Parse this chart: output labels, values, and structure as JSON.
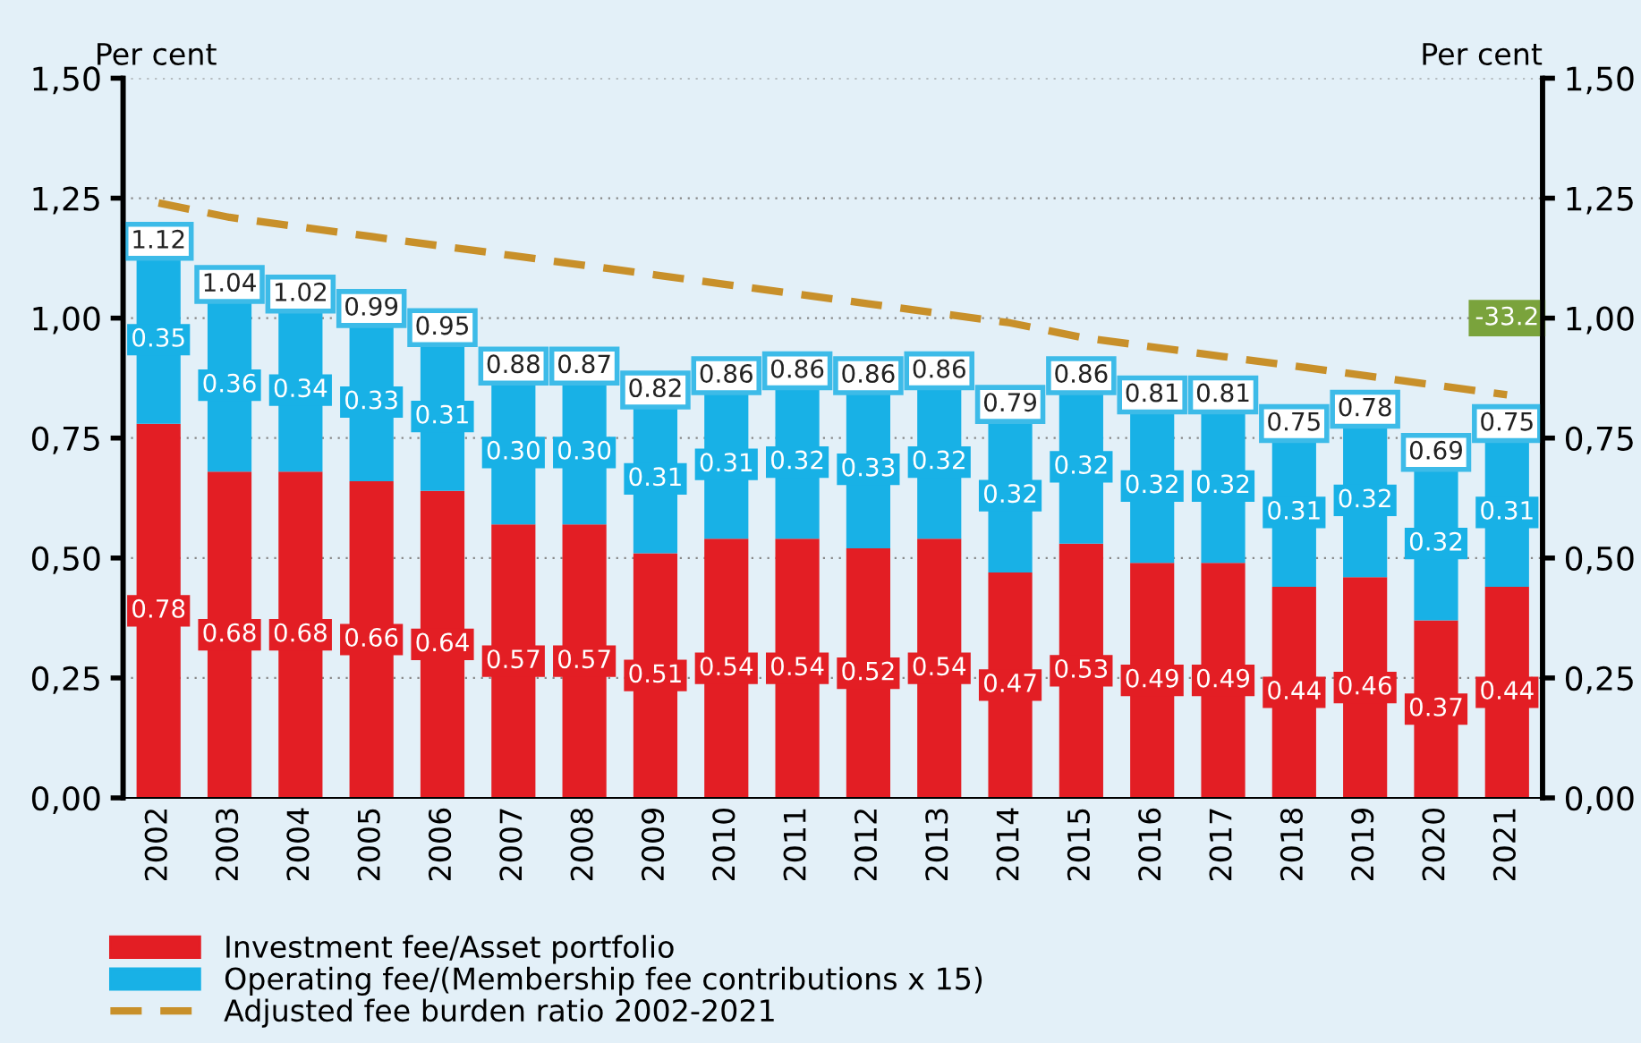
{
  "chart_data": {
    "type": "bar",
    "stacked": true,
    "categories": [
      "2002",
      "2003",
      "2004",
      "2005",
      "2006",
      "2007",
      "2008",
      "2009",
      "2010",
      "2011",
      "2012",
      "2013",
      "2014",
      "2015",
      "2016",
      "2017",
      "2018",
      "2019",
      "2020",
      "2021"
    ],
    "series": [
      {
        "name": "Investment fee/Asset portfolio",
        "color": "#e31e24",
        "values": [
          0.78,
          0.68,
          0.68,
          0.66,
          0.64,
          0.57,
          0.57,
          0.51,
          0.54,
          0.54,
          0.52,
          0.54,
          0.47,
          0.53,
          0.49,
          0.49,
          0.44,
          0.46,
          0.37,
          0.44
        ],
        "value_labels": [
          "0.78",
          "0.68",
          "0.68",
          "0.66",
          "0.64",
          "0.57",
          "0.57",
          "0.51",
          "0.54",
          "0.54",
          "0.52",
          "0.54",
          "0.47",
          "0.53",
          "0.49",
          "0.49",
          "0.44",
          "0.46",
          "0.37",
          "0.44"
        ]
      },
      {
        "name": "Operating fee/(Membership fee contributions x 15)",
        "color": "#18b1e6",
        "values": [
          0.35,
          0.36,
          0.34,
          0.33,
          0.31,
          0.3,
          0.3,
          0.31,
          0.31,
          0.32,
          0.33,
          0.32,
          0.32,
          0.32,
          0.32,
          0.32,
          0.31,
          0.32,
          0.32,
          0.31
        ],
        "value_labels": [
          "0.35",
          "0.36",
          "0.34",
          "0.33",
          "0.31",
          "0.30",
          "0.30",
          "0.31",
          "0.31",
          "0.32",
          "0.33",
          "0.32",
          "0.32",
          "0.32",
          "0.32",
          "0.32",
          "0.31",
          "0.32",
          "0.32",
          "0.31"
        ]
      },
      {
        "name": "Adjusted fee burden ratio 2002-2021",
        "type": "line",
        "line_style": "dashed",
        "color": "#c8902a",
        "values": [
          1.24,
          1.21,
          1.19,
          1.17,
          1.15,
          1.13,
          1.11,
          1.09,
          1.07,
          1.05,
          1.03,
          1.01,
          0.99,
          0.96,
          0.94,
          0.92,
          0.9,
          0.88,
          0.86,
          0.84
        ]
      }
    ],
    "totals": [
      "1.12",
      "1.04",
      "1.02",
      "0.99",
      "0.95",
      "0.88",
      "0.87",
      "0.82",
      "0.86",
      "0.86",
      "0.86",
      "0.86",
      "0.79",
      "0.86",
      "0.81",
      "0.81",
      "0.75",
      "0.78",
      "0.69",
      "0.75"
    ],
    "ylabel": "Per cent",
    "y2label": "Per cent",
    "ylim": [
      0,
      1.5
    ],
    "y2lim": [
      0,
      1.5
    ],
    "yticks": [
      {
        "value": 0,
        "label": "0,00"
      },
      {
        "value": 0.25,
        "label": "0,25"
      },
      {
        "value": 0.5,
        "label": "0,50"
      },
      {
        "value": 0.75,
        "label": "0,75"
      },
      {
        "value": 1.0,
        "label": "1,00"
      },
      {
        "value": 1.25,
        "label": "1,25"
      },
      {
        "value": 1.5,
        "label": "1,50"
      }
    ],
    "y2ticks": [
      {
        "value": 0,
        "label": "0,00"
      },
      {
        "value": 0.25,
        "label": "0,25"
      },
      {
        "value": 0.5,
        "label": "0,50"
      },
      {
        "value": 0.75,
        "label": "0,75"
      },
      {
        "value": 1.0,
        "label": "1,00"
      },
      {
        "value": 1.25,
        "label": "1,25"
      },
      {
        "value": 1.5,
        "label": "1,50"
      }
    ],
    "annotations": [
      {
        "text": "-33.2",
        "x": "2021",
        "y": 1.0
      }
    ],
    "grid": "y",
    "legend": "bottom"
  }
}
